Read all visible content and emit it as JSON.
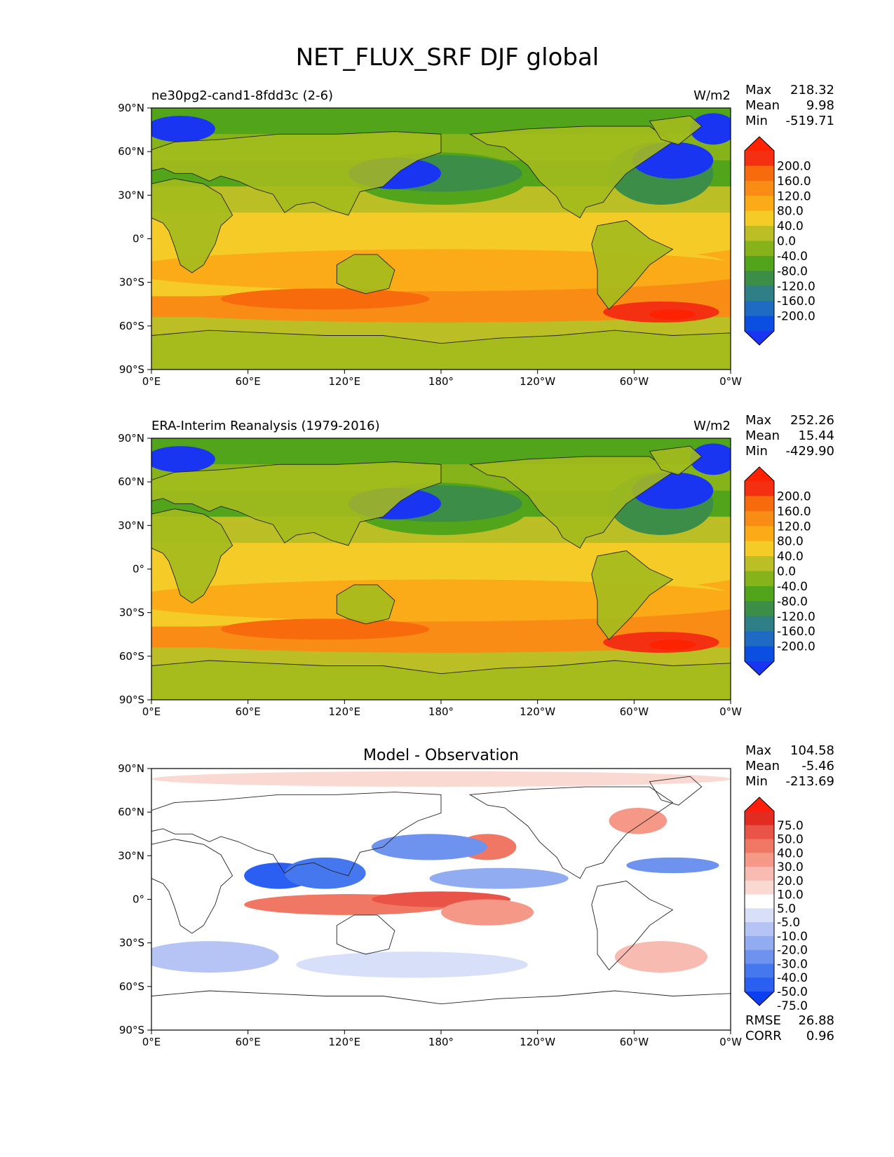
{
  "title": "NET_FLUX_SRF DJF global",
  "colors": {
    "abs_levels": [
      "#1a35f2",
      "#0b4fe0",
      "#1f6bc4",
      "#2f7f86",
      "#3b8d47",
      "#52a41a",
      "#86b21a",
      "#bcbe25",
      "#f5cb28",
      "#fbaa18",
      "#f88c15",
      "#f76b0d",
      "#f33012",
      "#ff2200"
    ],
    "diff_levels": [
      "#0b3ff0",
      "#2a5ff2",
      "#4577ee",
      "#6e93ee",
      "#92acf1",
      "#b5c4f4",
      "#d7e0f8",
      "#ffffff",
      "#fbd9d3",
      "#f8bbb2",
      "#f59888",
      "#f07763",
      "#ea5448",
      "#e22c22",
      "#ff1f0a"
    ],
    "land_bg": "#a3bb1d",
    "coast": "#222222"
  },
  "chart_data": [
    {
      "type": "heatmap",
      "panel": "test",
      "title_left": "ne30pg2-cand1-8fdd3c (2-6)",
      "title_right": "W/m2",
      "stats": [
        {
          "label": "Max",
          "value": "218.32"
        },
        {
          "label": "Mean",
          "value": "9.98"
        },
        {
          "label": "Min",
          "value": "-519.71"
        }
      ],
      "colorbar_ticks": [
        "200.0",
        "160.0",
        "120.0",
        "80.0",
        "40.0",
        "0.0",
        "-40.0",
        "-80.0",
        "-120.0",
        "-160.0",
        "-200.0"
      ],
      "xticks": [
        "0°E",
        "60°E",
        "120°E",
        "180°",
        "120°W",
        "60°W",
        "0°W"
      ],
      "yticks": [
        "90°N",
        "60°N",
        "30°N",
        "0°",
        "30°S",
        "60°S",
        "90°S"
      ]
    },
    {
      "type": "heatmap",
      "panel": "reference",
      "title_left": "ERA-Interim Reanalysis (1979-2016)",
      "title_right": "W/m2",
      "stats": [
        {
          "label": "Max",
          "value": "252.26"
        },
        {
          "label": "Mean",
          "value": "15.44"
        },
        {
          "label": "Min",
          "value": "-429.90"
        }
      ],
      "colorbar_ticks": [
        "200.0",
        "160.0",
        "120.0",
        "80.0",
        "40.0",
        "0.0",
        "-40.0",
        "-80.0",
        "-120.0",
        "-160.0",
        "-200.0"
      ],
      "xticks": [
        "0°E",
        "60°E",
        "120°E",
        "180°",
        "120°W",
        "60°W",
        "0°W"
      ],
      "yticks": [
        "90°N",
        "60°N",
        "30°N",
        "0°",
        "30°S",
        "60°S",
        "90°S"
      ]
    },
    {
      "type": "heatmap",
      "panel": "difference",
      "title_center": "Model - Observation",
      "stats": [
        {
          "label": "Max",
          "value": "104.58"
        },
        {
          "label": "Mean",
          "value": "-5.46"
        },
        {
          "label": "Min",
          "value": "-213.69"
        }
      ],
      "extra_stats": [
        {
          "label": "RMSE",
          "value": "26.88"
        },
        {
          "label": "CORR",
          "value": "0.96"
        }
      ],
      "colorbar_ticks": [
        "75.0",
        "50.0",
        "40.0",
        "30.0",
        "20.0",
        "10.0",
        "5.0",
        "-5.0",
        "-10.0",
        "-20.0",
        "-30.0",
        "-40.0",
        "-50.0",
        "-75.0"
      ],
      "xticks": [
        "0°E",
        "60°E",
        "120°E",
        "180°",
        "120°W",
        "60°W",
        "0°W"
      ],
      "yticks": [
        "90°N",
        "60°N",
        "30°N",
        "0°",
        "30°S",
        "60°S",
        "90°S"
      ]
    }
  ]
}
